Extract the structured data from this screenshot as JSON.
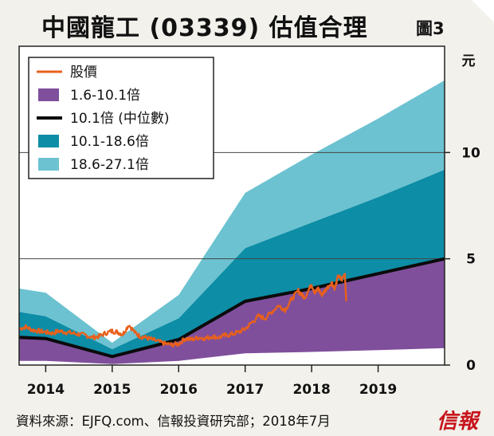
{
  "page": {
    "title": "中國龍工 (03339) 估值合理",
    "figure_label": "圖3",
    "source": "資料來源：EJFQ.com、信報投資研究部；2018年7月",
    "logo": "信報"
  },
  "chart_data": {
    "type": "area",
    "title": "中國龍工 (03339) 估值合理",
    "ylabel": "元",
    "xlabel": "",
    "ylim": [
      0,
      15
    ],
    "xlim": [
      2013.6,
      2020.0
    ],
    "yticks": [
      0,
      5,
      10
    ],
    "xticks": [
      2014,
      2015,
      2016,
      2017,
      2018,
      2019
    ],
    "gridlines_y": [
      5,
      10
    ],
    "legend_position": "top-left",
    "colors": {
      "price": "#e8601c",
      "band_low": "#7f4f9c",
      "median": "#0b0b0b",
      "band_mid": "#0d8da6",
      "band_high": "#6cc2d0"
    },
    "legend": [
      {
        "key": "price",
        "label": "股價"
      },
      {
        "key": "band_low",
        "label": "1.6-10.1倍"
      },
      {
        "key": "median",
        "label": "10.1倍 (中位數)"
      },
      {
        "key": "band_mid",
        "label": "10.1-18.6倍"
      },
      {
        "key": "band_high",
        "label": "18.6-27.1倍"
      }
    ],
    "band_x": [
      2013.6,
      2014.0,
      2015.0,
      2016.0,
      2017.0,
      2018.0,
      2019.0,
      2020.0
    ],
    "series": [
      {
        "name": "1.6倍",
        "values": [
          0.2,
          0.2,
          0.05,
          0.2,
          0.55,
          0.62,
          0.7,
          0.8
        ]
      },
      {
        "name": "10.1倍 (中位數)",
        "values": [
          1.3,
          1.25,
          0.4,
          1.2,
          3.0,
          3.6,
          4.3,
          5.0
        ]
      },
      {
        "name": "18.6倍",
        "values": [
          2.5,
          2.3,
          0.75,
          2.2,
          5.5,
          6.7,
          7.9,
          9.2
        ]
      },
      {
        "name": "27.1倍",
        "values": [
          3.6,
          3.4,
          1.05,
          3.3,
          8.1,
          9.9,
          11.6,
          13.4
        ]
      }
    ],
    "price": {
      "name": "股價",
      "x": [
        2013.6,
        2013.7,
        2013.8,
        2013.9,
        2014.0,
        2014.1,
        2014.2,
        2014.3,
        2014.4,
        2014.5,
        2014.6,
        2014.7,
        2014.8,
        2014.9,
        2015.0,
        2015.08,
        2015.16,
        2015.25,
        2015.35,
        2015.42,
        2015.5,
        2015.6,
        2015.7,
        2015.8,
        2015.9,
        2016.0,
        2016.1,
        2016.2,
        2016.3,
        2016.4,
        2016.5,
        2016.6,
        2016.7,
        2016.8,
        2016.9,
        2017.0,
        2017.1,
        2017.2,
        2017.3,
        2017.4,
        2017.5,
        2017.6,
        2017.7,
        2017.8,
        2017.85,
        2017.9,
        2018.0,
        2018.05,
        2018.1,
        2018.15,
        2018.2,
        2018.3,
        2018.35,
        2018.4,
        2018.45,
        2018.5,
        2018.52
      ],
      "values": [
        1.7,
        1.8,
        1.65,
        1.6,
        1.55,
        1.5,
        1.6,
        1.55,
        1.5,
        1.45,
        1.4,
        1.3,
        1.35,
        1.5,
        1.6,
        1.55,
        1.45,
        1.9,
        1.5,
        1.35,
        1.3,
        1.2,
        1.1,
        1.0,
        0.95,
        1.0,
        1.25,
        1.2,
        1.3,
        1.25,
        1.35,
        1.3,
        1.4,
        1.45,
        1.55,
        1.7,
        2.0,
        2.3,
        2.2,
        2.5,
        2.8,
        2.6,
        3.1,
        3.5,
        3.3,
        3.2,
        3.8,
        3.4,
        3.6,
        3.3,
        3.5,
        3.9,
        3.6,
        4.2,
        4.0,
        4.3,
        3.0
      ]
    }
  }
}
